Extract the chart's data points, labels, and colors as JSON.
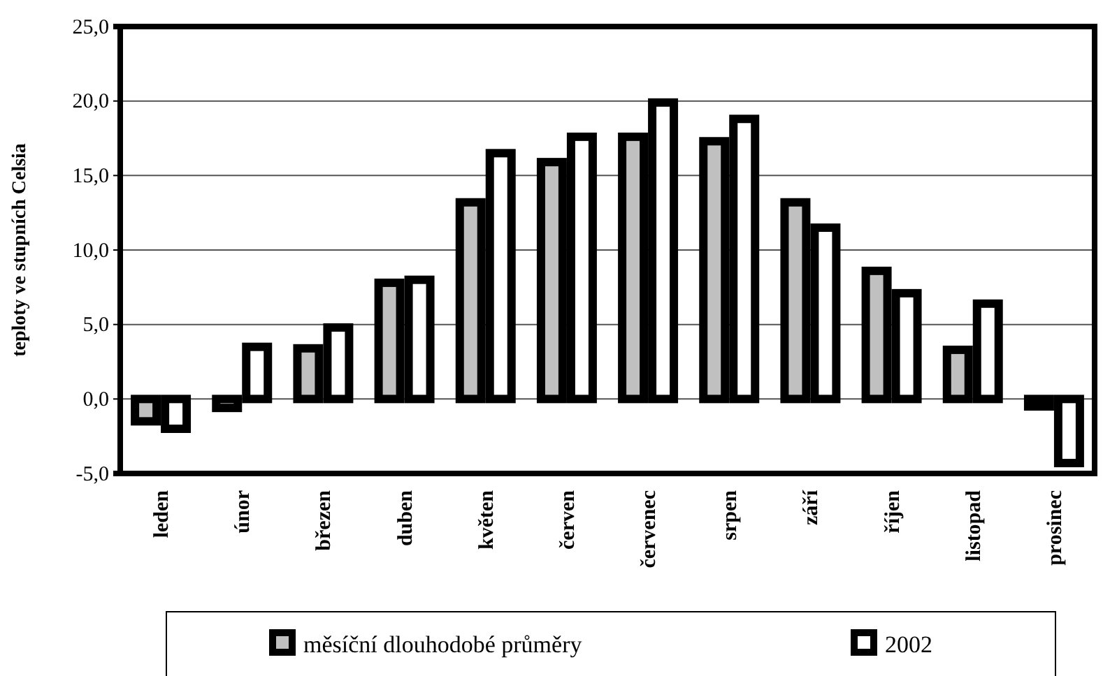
{
  "chart_data": {
    "type": "bar",
    "ylabel": "teploty ve stupních Celsia",
    "categories": [
      "leden",
      "únor",
      "březen",
      "duben",
      "květen",
      "červen",
      "červenec",
      "srpen",
      "září",
      "říjen",
      "listopad",
      "prosinec"
    ],
    "series": [
      {
        "name": "měsíční dlouhodobé průměry",
        "color": "#c0c0c0",
        "values": [
          -1.5,
          -0.6,
          3.4,
          7.8,
          13.2,
          15.9,
          17.6,
          17.3,
          13.2,
          8.6,
          3.3,
          -0.5
        ]
      },
      {
        "name": "2002",
        "color": "#ffffff",
        "values": [
          -2.0,
          3.5,
          4.8,
          8.0,
          16.5,
          17.6,
          19.9,
          18.8,
          11.5,
          7.1,
          6.4,
          -4.3
        ]
      }
    ],
    "ylim": [
      -5,
      25
    ],
    "yticks": [
      {
        "value": -5,
        "label": "-5,0"
      },
      {
        "value": 0,
        "label": "0,0"
      },
      {
        "value": 5,
        "label": "5,0"
      },
      {
        "value": 10,
        "label": "10,0"
      },
      {
        "value": 15,
        "label": "15,0"
      },
      {
        "value": 20,
        "label": "20,0"
      },
      {
        "value": 25,
        "label": "25,0"
      }
    ],
    "grid": "y",
    "legend": "bottom"
  }
}
